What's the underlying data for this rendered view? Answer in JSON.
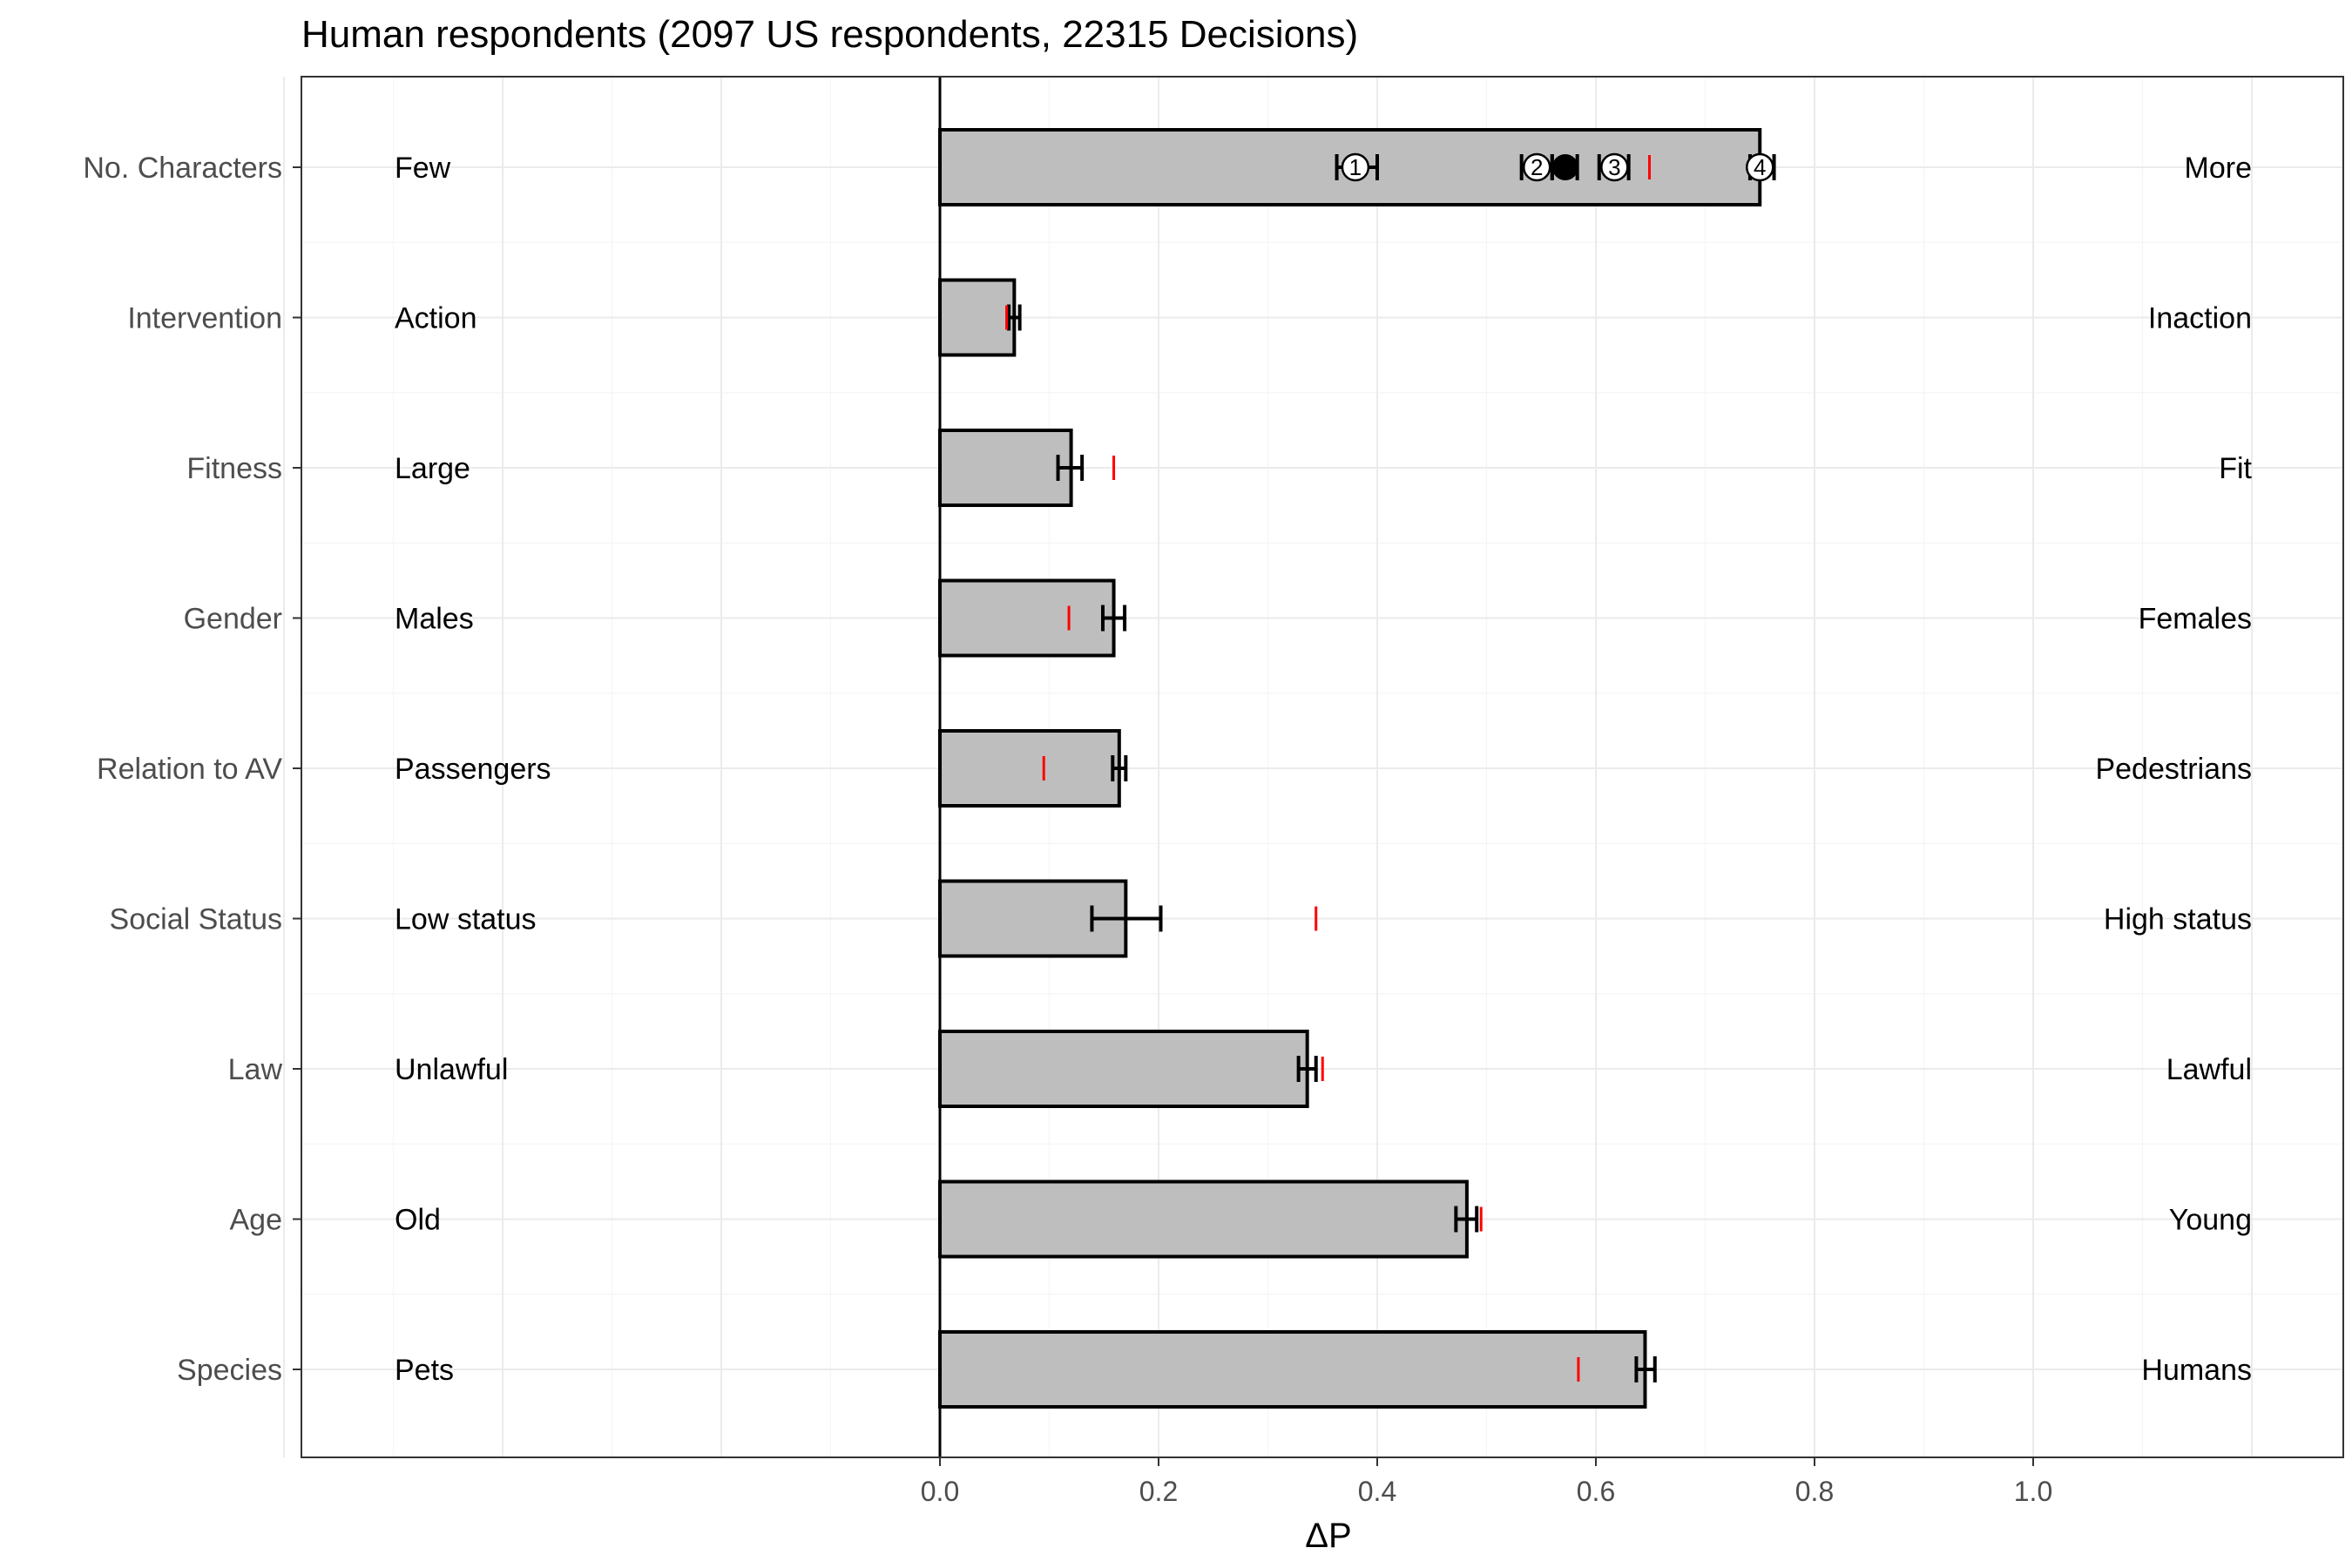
{
  "chart_data": {
    "type": "bar",
    "orientation": "horizontal",
    "title": "Human respondents (2097 US respondents, 22315 Decisions)",
    "xlabel": "ΔP",
    "ylabel": "",
    "xlim": [
      -0.6,
      1.28
    ],
    "xticks": [
      0.0,
      0.2,
      0.4,
      0.6,
      0.8,
      1.0
    ],
    "xtick_labels": [
      "0.0",
      "0.2",
      "0.4",
      "0.6",
      "0.8",
      "1.0"
    ],
    "grid": true,
    "categories": [
      "No. Characters",
      "Intervention",
      "Fitness",
      "Gender",
      "Relation to AV",
      "Social Status",
      "Law",
      "Age",
      "Species"
    ],
    "left_labels": [
      "Few",
      "Action",
      "Large",
      "Males",
      "Passengers",
      "Low status",
      "Unlawful",
      "Old",
      "Pets"
    ],
    "right_labels": [
      "More",
      "Inaction",
      "Fit",
      "Females",
      "Pedestrians",
      "High status",
      "Lawful",
      "Young",
      "Humans"
    ],
    "values": [
      0.75,
      0.068,
      0.12,
      0.159,
      0.164,
      0.17,
      0.336,
      0.482,
      0.645
    ],
    "error_bars": [
      [
        0.741,
        0.763
      ],
      [
        0.063,
        0.073
      ],
      [
        0.108,
        0.13
      ],
      [
        0.149,
        0.169
      ],
      [
        0.158,
        0.17
      ],
      [
        0.139,
        0.202
      ],
      [
        0.328,
        0.344
      ],
      [
        0.472,
        0.491
      ],
      [
        0.637,
        0.654
      ]
    ],
    "reference_marks": [
      0.649,
      0.061,
      0.159,
      0.118,
      0.095,
      0.344,
      0.35,
      0.495,
      0.584
    ],
    "no_characters_markers": [
      {
        "label": "1",
        "value": 0.38,
        "err": [
          0.363,
          0.4
        ]
      },
      {
        "label": "2",
        "value": 0.546,
        "err": [
          0.532,
          0.56
        ]
      },
      {
        "label": "",
        "value": 0.572,
        "err": [
          0.56,
          0.583
        ]
      },
      {
        "label": "3",
        "value": 0.617,
        "err": [
          0.603,
          0.63
        ]
      },
      {
        "label": "4",
        "value": 0.75,
        "err": [
          0.741,
          0.763
        ]
      }
    ],
    "colors": {
      "bar_fill": "#bebebe",
      "bar_edge": "#000000",
      "reference": "#ff0000"
    }
  }
}
